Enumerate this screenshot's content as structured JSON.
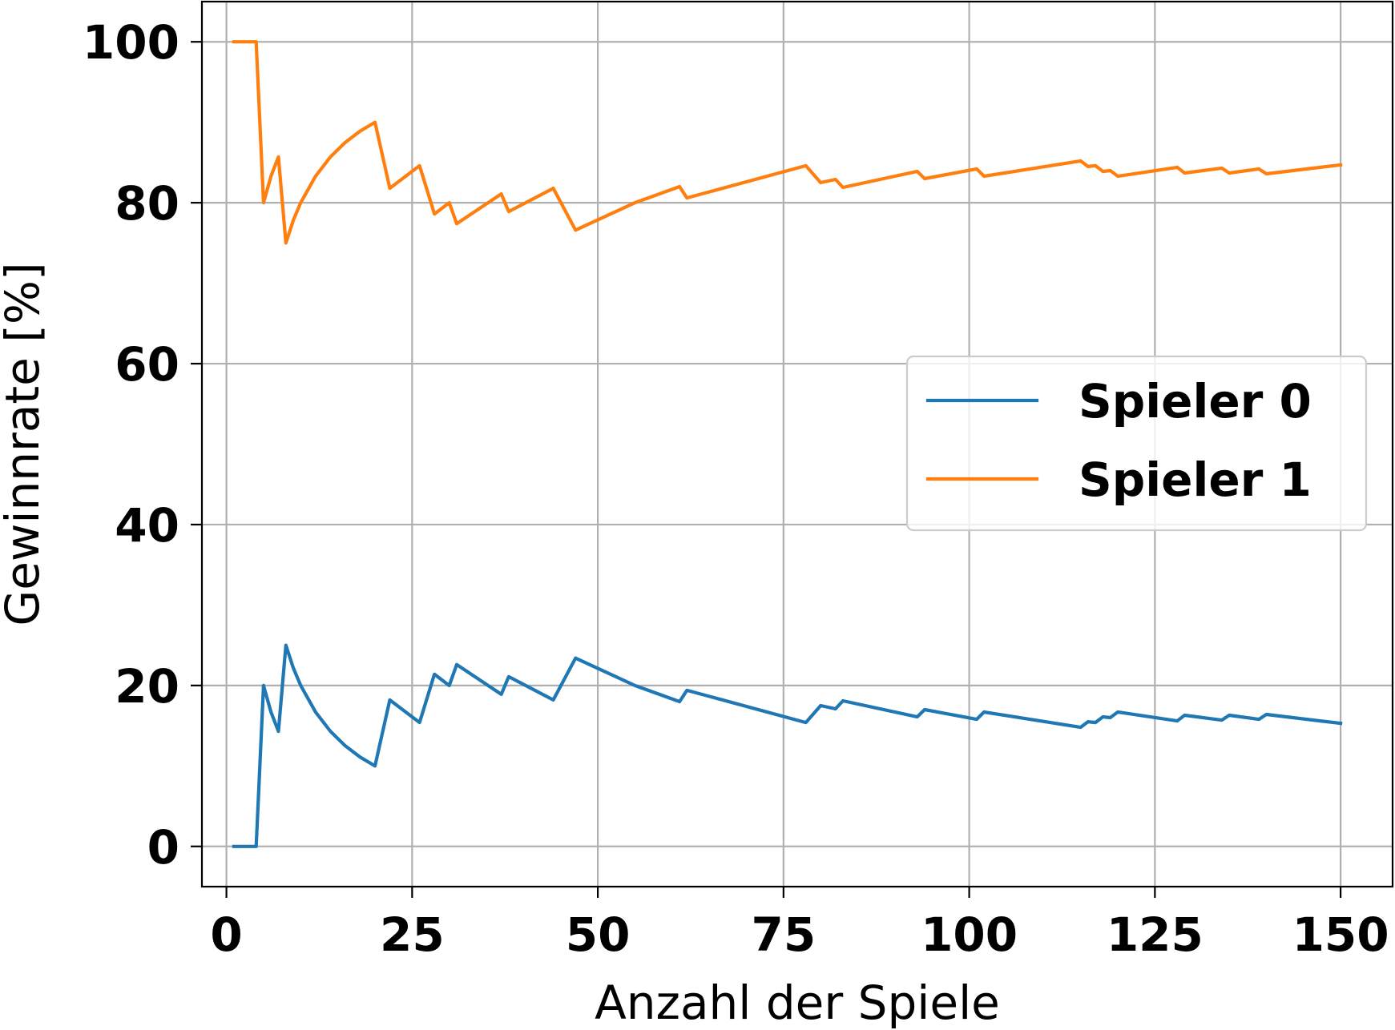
{
  "chart_data": {
    "type": "line",
    "xlabel": "Anzahl der Spiele",
    "ylabel": "Gewinnrate [%]",
    "xlim": [
      -3.3,
      157
    ],
    "ylim": [
      -5,
      105
    ],
    "xticks": [
      "0",
      "25",
      "50",
      "75",
      "100",
      "125",
      "150"
    ],
    "yticks": [
      "0",
      "20",
      "40",
      "60",
      "80",
      "100"
    ],
    "grid": true,
    "legend": "center-right",
    "series": [
      {
        "name": "Spieler 0",
        "color": "#1f77b4",
        "x": [
          1,
          4,
          5,
          6,
          7,
          8,
          9,
          10,
          12,
          14,
          16,
          18,
          20,
          22,
          26,
          28,
          30,
          31,
          37,
          38,
          44,
          47,
          55,
          61,
          62,
          78,
          80,
          82,
          83,
          93,
          94,
          101,
          102,
          115,
          116,
          117,
          118,
          119,
          120,
          128,
          129,
          134,
          135,
          139,
          140,
          150
        ],
        "values": [
          0,
          0,
          20,
          16.7,
          14.3,
          25,
          22.2,
          20,
          16.7,
          14.3,
          12.5,
          11.1,
          10,
          18.2,
          15.4,
          21.4,
          20,
          22.6,
          18.9,
          21.1,
          18.2,
          23.4,
          20,
          18,
          19.4,
          15.4,
          17.5,
          17.1,
          18.1,
          16.1,
          17,
          15.8,
          16.7,
          14.8,
          15.5,
          15.4,
          16.1,
          16,
          16.7,
          15.6,
          16.3,
          15.7,
          16.3,
          15.8,
          16.4,
          15.3
        ]
      },
      {
        "name": "Spieler 1",
        "color": "#ff7f0e",
        "x": [
          1,
          4,
          5,
          6,
          7,
          8,
          9,
          10,
          12,
          14,
          16,
          18,
          20,
          22,
          26,
          28,
          30,
          31,
          37,
          38,
          44,
          47,
          55,
          61,
          62,
          78,
          80,
          82,
          83,
          93,
          94,
          101,
          102,
          115,
          116,
          117,
          118,
          119,
          120,
          128,
          129,
          134,
          135,
          139,
          140,
          150
        ],
        "values": [
          100,
          100,
          80,
          83.3,
          85.7,
          75,
          77.8,
          80,
          83.3,
          85.7,
          87.5,
          88.9,
          90,
          81.8,
          84.6,
          78.6,
          80,
          77.4,
          81.1,
          78.9,
          81.8,
          76.6,
          80,
          82,
          80.6,
          84.6,
          82.5,
          82.9,
          81.9,
          83.9,
          83,
          84.2,
          83.3,
          85.2,
          84.5,
          84.6,
          83.9,
          84,
          83.3,
          84.4,
          83.7,
          84.3,
          83.7,
          84.2,
          83.6,
          84.7
        ]
      }
    ]
  }
}
